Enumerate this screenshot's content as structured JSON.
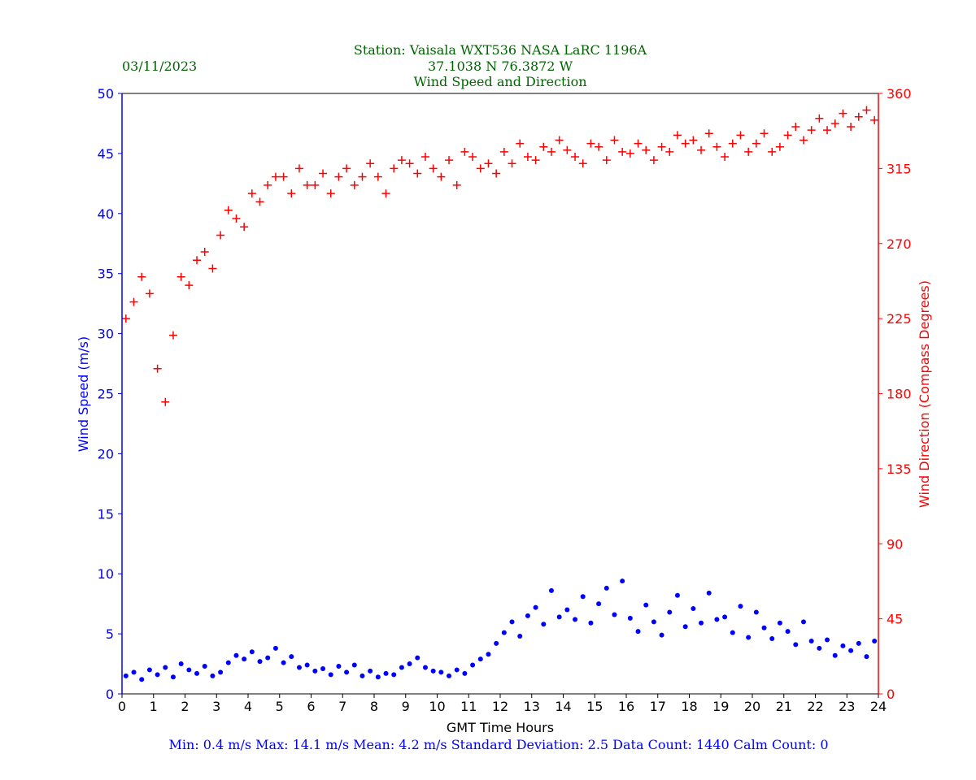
{
  "header": {
    "date": "03/11/2023",
    "station": "Station:  Vaisala WXT536  NASA LaRC 1196A",
    "coords": "37.1038 N 76.3872 W",
    "title": "Wind Speed and Direction"
  },
  "footer": {
    "stats": "Min: 0.4 m/s   Max: 14.1 m/s   Mean: 4.2 m/s  Standard Deviation: 2.5  Data Count: 1440  Calm Count:  0"
  },
  "colors": {
    "speed": "#0000ff",
    "direction": "#ff0000",
    "title": "#006400",
    "axis": "#000000"
  },
  "chart_data": {
    "type": "scatter",
    "title": "Wind Speed and Direction",
    "xlabel": "GMT Time Hours",
    "ylabel": "Wind Speed (m/s)",
    "y2label": "Wind Direction (Compass Degrees)",
    "xlim": [
      0,
      24
    ],
    "ylim": [
      0,
      50
    ],
    "y2lim": [
      0,
      360
    ],
    "xticks": [
      "0",
      "1",
      "2",
      "3",
      "4",
      "5",
      "6",
      "7",
      "8",
      "9",
      "10",
      "11",
      "12",
      "13",
      "14",
      "15",
      "16",
      "17",
      "18",
      "19",
      "20",
      "21",
      "22",
      "23",
      "24"
    ],
    "yticks": [
      "0",
      "5",
      "10",
      "15",
      "20",
      "25",
      "30",
      "35",
      "40",
      "45",
      "50"
    ],
    "y2ticks": [
      "0",
      "45",
      "90",
      "135",
      "180",
      "225",
      "270",
      "315",
      "360"
    ],
    "grid": false,
    "note": "downsampled to 15-minute samples",
    "series": [
      {
        "name": "Wind Speed",
        "axis": "left",
        "marker": "dot",
        "values": [
          1.5,
          1.8,
          1.2,
          2.0,
          1.6,
          2.2,
          1.4,
          2.5,
          2.0,
          1.7,
          2.3,
          1.5,
          1.8,
          2.6,
          3.2,
          2.9,
          3.5,
          2.7,
          3.0,
          3.8,
          2.6,
          3.1,
          2.2,
          2.4,
          1.9,
          2.1,
          1.6,
          2.3,
          1.8,
          2.4,
          1.5,
          1.9,
          1.4,
          1.7,
          1.6,
          2.2,
          2.5,
          3.0,
          2.2,
          1.9,
          1.8,
          1.5,
          2.0,
          1.7,
          2.4,
          2.9,
          3.3,
          4.2,
          5.1,
          6.0,
          4.8,
          6.5,
          7.2,
          5.8,
          8.6,
          6.4,
          7.0,
          6.2,
          8.1,
          5.9,
          7.5,
          8.8,
          6.6,
          9.4,
          6.3,
          5.2,
          7.4,
          6.0,
          4.9,
          6.8,
          8.2,
          5.6,
          7.1,
          5.9,
          8.4,
          6.2,
          6.4,
          5.1,
          7.3,
          4.7,
          6.8,
          5.5,
          4.6,
          5.9,
          5.2,
          4.1,
          6.0,
          4.4,
          3.8,
          4.5,
          3.2,
          4.0,
          3.6,
          4.2,
          3.1,
          4.4
        ]
      },
      {
        "name": "Wind Direction",
        "axis": "right",
        "marker": "plus",
        "values": [
          225,
          235,
          250,
          240,
          195,
          175,
          215,
          250,
          245,
          260,
          265,
          255,
          275,
          290,
          285,
          280,
          300,
          295,
          305,
          310,
          310,
          300,
          315,
          305,
          305,
          312,
          300,
          310,
          315,
          305,
          310,
          318,
          310,
          300,
          315,
          320,
          318,
          312,
          322,
          315,
          310,
          320,
          305,
          325,
          322,
          315,
          318,
          312,
          325,
          318,
          330,
          322,
          320,
          328,
          325,
          332,
          326,
          322,
          318,
          330,
          328,
          320,
          332,
          325,
          324,
          330,
          326,
          320,
          328,
          325,
          335,
          330,
          332,
          326,
          336,
          328,
          322,
          330,
          335,
          325,
          330,
          336,
          325,
          328,
          335,
          340,
          332,
          338,
          345,
          338,
          342,
          348,
          340,
          346,
          350,
          344
        ]
      }
    ]
  }
}
